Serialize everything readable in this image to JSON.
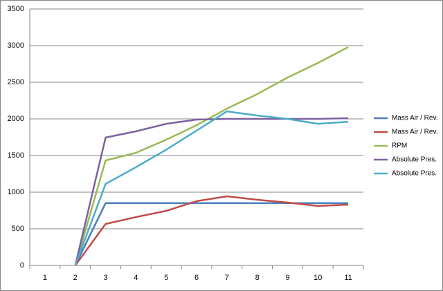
{
  "chart_data": {
    "type": "line",
    "categories": [
      "1",
      "2",
      "3",
      "4",
      "5",
      "6",
      "7",
      "8",
      "9",
      "10",
      "11"
    ],
    "series": [
      {
        "name": "Mass Air / Rev.",
        "color": "#4a7ebb",
        "values": [
          null,
          0,
          850,
          850,
          850,
          850,
          850,
          850,
          850,
          850,
          850
        ]
      },
      {
        "name": "Mass Air / Rev.",
        "color": "#be4b48",
        "values": [
          null,
          0,
          566,
          660,
          745,
          877,
          943,
          896,
          858,
          811,
          830
        ]
      },
      {
        "name": "RPM",
        "color": "#98b954",
        "values": [
          null,
          0,
          1433,
          1537,
          1716,
          1914,
          2140,
          2339,
          2565,
          2763,
          2980
        ]
      },
      {
        "name": "Absolute Pres.",
        "color": "#7d60a0",
        "values": [
          null,
          0,
          1745,
          1830,
          1933,
          1990,
          2000,
          2000,
          2000,
          2000,
          2010
        ]
      },
      {
        "name": "Absolute Pres.",
        "color": "#4bacc6",
        "values": [
          null,
          0,
          1113,
          1340,
          1580,
          1840,
          2103,
          2046,
          2000,
          1933,
          1961
        ]
      }
    ],
    "ylim": [
      0,
      3500
    ],
    "yticks": [
      0,
      500,
      1000,
      1500,
      2000,
      2500,
      3000,
      3500
    ],
    "grid": true,
    "legend": "right"
  }
}
